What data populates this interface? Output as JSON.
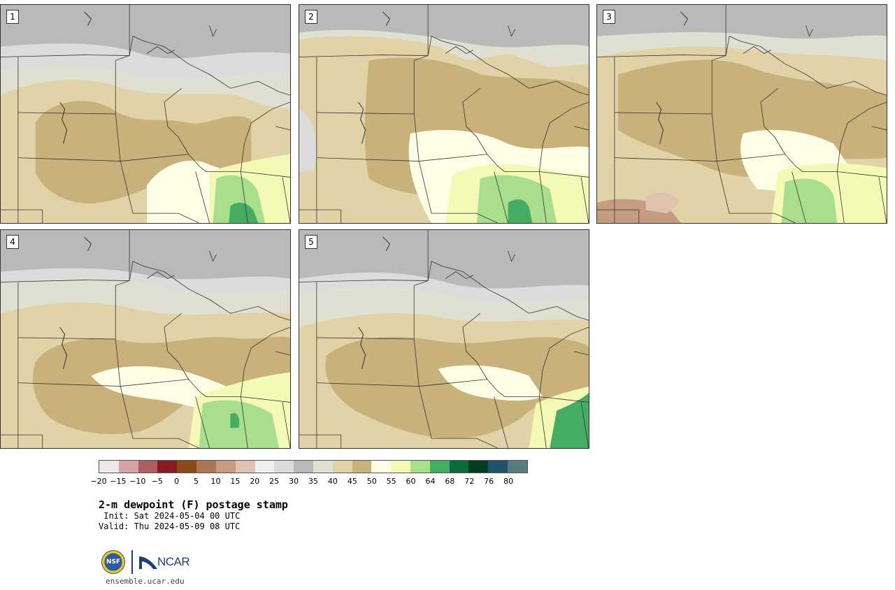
{
  "panels": [
    {
      "number": "1"
    },
    {
      "number": "2"
    },
    {
      "number": "3"
    },
    {
      "number": "4"
    },
    {
      "number": "5"
    }
  ],
  "colorbar": {
    "colors": [
      "#f3e6e6",
      "#d4a3a5",
      "#ae5d61",
      "#8a1a20",
      "#8c4a18",
      "#ab7654",
      "#c59c81",
      "#dfc3b0",
      "#efefef",
      "#dcdcdc",
      "#b9b9b9",
      "#e0e0d2",
      "#e1d2a8",
      "#c8b17a",
      "#fefee6",
      "#f4f9b6",
      "#a9de8c",
      "#45ad62",
      "#0c6b3a",
      "#053c22",
      "#1c5469",
      "#537d80"
    ],
    "ticks": [
      "−20",
      "−15",
      "−10",
      "−5",
      "0",
      "5",
      "10",
      "15",
      "20",
      "25",
      "30",
      "35",
      "40",
      "45",
      "50",
      "55",
      "60",
      "64",
      "68",
      "72",
      "76",
      "80"
    ]
  },
  "title": "2-m dewpoint (F) postage stamp",
  "init": " Init: Sat 2024-05-04 00 UTC",
  "valid": "Valid: Thu 2024-05-09 08 UTC",
  "logos": {
    "nsf": "NSF",
    "ncar": "NCAR"
  },
  "website": "ensemble.ucar.edu"
}
